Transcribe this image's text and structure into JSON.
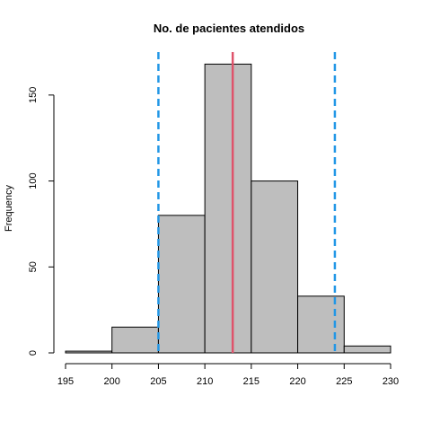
{
  "chart_data": {
    "type": "bar",
    "title": "No. de pacientes atendidos",
    "xlabel": "",
    "ylabel": "Frequency",
    "bins": [
      {
        "start": 195,
        "end": 200,
        "count": 1
      },
      {
        "start": 200,
        "end": 205,
        "count": 15
      },
      {
        "start": 205,
        "end": 210,
        "count": 80
      },
      {
        "start": 210,
        "end": 215,
        "count": 168
      },
      {
        "start": 215,
        "end": 220,
        "count": 100
      },
      {
        "start": 220,
        "end": 225,
        "count": 33
      },
      {
        "start": 225,
        "end": 230,
        "count": 4
      }
    ],
    "xlim": [
      195,
      230
    ],
    "ylim": [
      0,
      175
    ],
    "x_ticks": [
      195,
      200,
      205,
      210,
      215,
      220,
      225,
      230
    ],
    "y_ticks": [
      0,
      50,
      100,
      150
    ],
    "reference_lines": [
      {
        "kind": "mean",
        "value": 213,
        "color": "#df536b",
        "style": "solid"
      },
      {
        "kind": "lower-bound",
        "value": 205,
        "color": "#2297e6",
        "style": "dashed"
      },
      {
        "kind": "upper-bound",
        "value": 224,
        "color": "#2297e6",
        "style": "dashed"
      }
    ],
    "bar_fill": "#bebebe",
    "grid": false
  }
}
